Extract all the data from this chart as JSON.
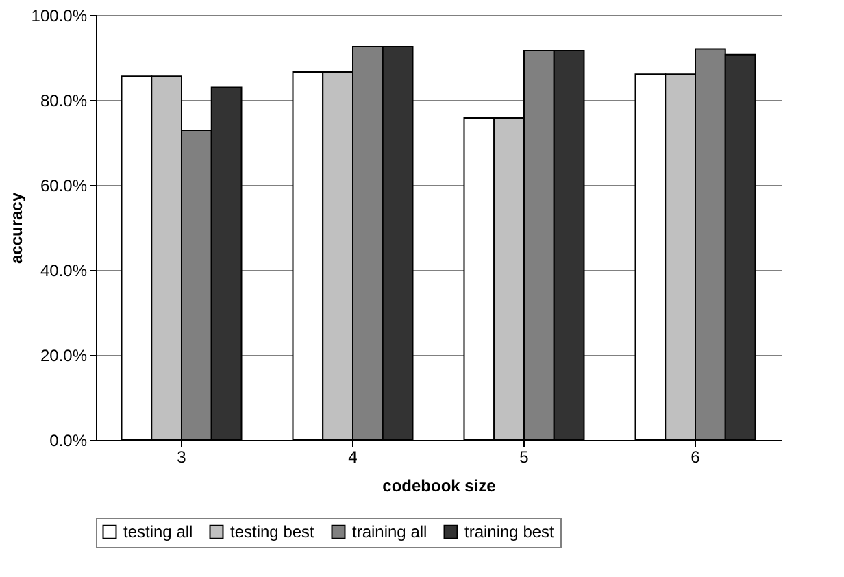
{
  "chart_data": {
    "type": "bar",
    "xlabel": "codebook size",
    "ylabel": "accuracy",
    "categories": [
      "3",
      "4",
      "5",
      "6"
    ],
    "series": [
      {
        "name": "testing all",
        "color": "#ffffff",
        "values": [
          85.6,
          86.6,
          75.8,
          86.1
        ]
      },
      {
        "name": "testing best",
        "color": "#c0c0c0",
        "values": [
          85.6,
          86.6,
          75.8,
          86.1
        ]
      },
      {
        "name": "training all",
        "color": "#808080",
        "values": [
          72.9,
          92.6,
          91.6,
          92.0
        ]
      },
      {
        "name": "training best",
        "color": "#333333",
        "values": [
          83.0,
          92.6,
          91.6,
          90.7
        ]
      }
    ],
    "ylim": [
      0,
      100
    ],
    "yticks": [
      {
        "value": 0,
        "label": "0.0%"
      },
      {
        "value": 20,
        "label": "20.0%"
      },
      {
        "value": 40,
        "label": "40.0%"
      },
      {
        "value": 60,
        "label": "60.0%"
      },
      {
        "value": 80,
        "label": "80.0%"
      },
      {
        "value": 100,
        "label": "100.0%"
      }
    ],
    "grid": "y",
    "legend": "bottom"
  }
}
